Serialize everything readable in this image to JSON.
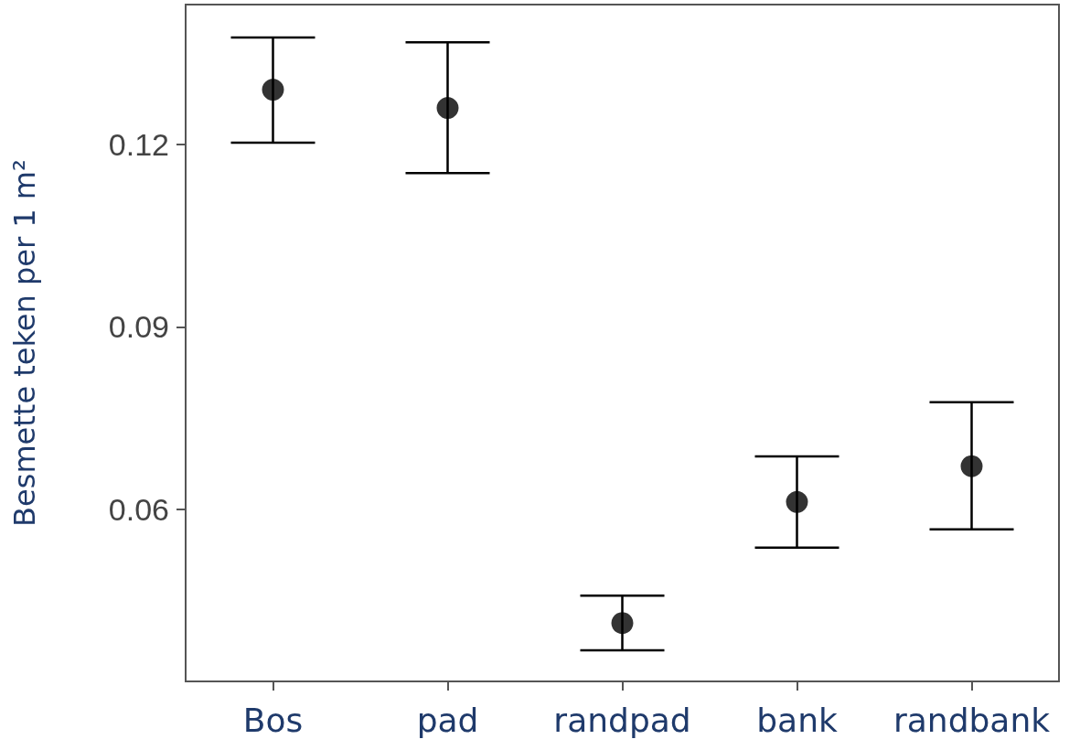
{
  "chart_data": {
    "type": "scatter",
    "ylabel": "Besmette teken per 1 m²",
    "categories": [
      "Bos",
      "pad",
      "randpad",
      "bank",
      "randbank"
    ],
    "values": [
      0.129,
      0.126,
      0.0413,
      0.0612,
      0.0671
    ],
    "errors": [
      [
        0.1203,
        0.1376
      ],
      [
        0.1153,
        0.1368
      ],
      [
        0.0368,
        0.0458
      ],
      [
        0.0537,
        0.0687
      ],
      [
        0.0567,
        0.0776
      ]
    ],
    "color": "#000000",
    "marker": "circle",
    "grid": false,
    "ylim": [
      0.0317,
      0.143
    ],
    "yticks": [
      0.06,
      0.09,
      0.12
    ]
  }
}
